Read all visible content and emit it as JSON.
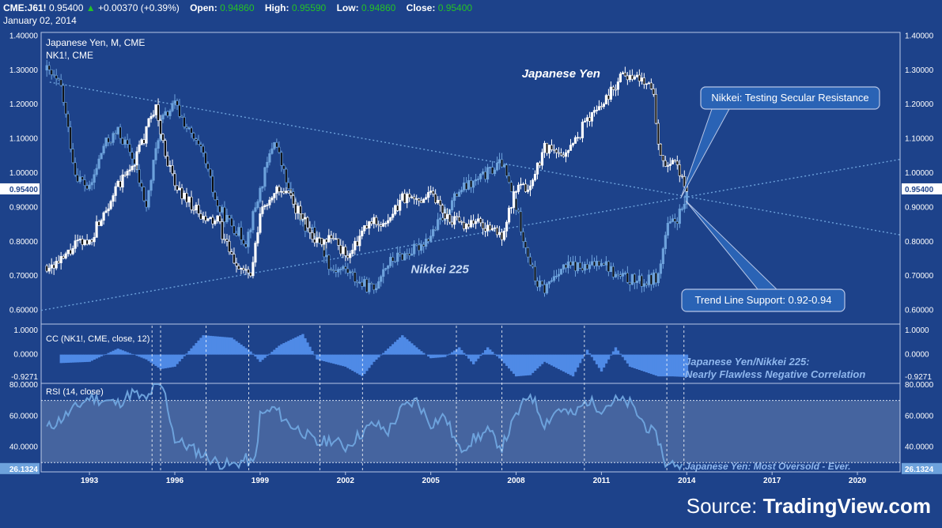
{
  "header": {
    "symbol": "CME:J61!",
    "price": "0.95400",
    "change": "+0.00370 (+0.39%)",
    "open_label": "Open:",
    "open": "0.94860",
    "high_label": "High:",
    "high": "0.95590",
    "low_label": "Low:",
    "low": "0.94860",
    "close_label": "Close:",
    "close": "0.95400",
    "date": "January 02, 2014"
  },
  "source_label": "Source:",
  "source_name": "TradingView.com",
  "colors": {
    "background": "#1d428a",
    "yen_candles": "#ffffff",
    "nikkei_candles": "#6da2dc",
    "histogram": "#4f8ae6",
    "rsi_line": "#6da2dc",
    "trendline": "#6da2dc",
    "callout": "#2a63b5",
    "price_up": "#25c225"
  },
  "chart_data": [
    {
      "type": "candlestick",
      "title": "Japanese Yen, M, CME",
      "subtitle": "NK1!, CME",
      "ylim": [
        0.56,
        1.41
      ],
      "yticks": [
        "0.60000",
        "0.70000",
        "0.80000",
        "0.90000",
        "1.00000",
        "1.10000",
        "1.20000",
        "1.30000",
        "1.40000"
      ],
      "last_value_label": "0.95400",
      "annotations": [
        {
          "text": "Japanese Yen",
          "x": 2012.0,
          "y": 1.29
        },
        {
          "text": "Nikkei 225",
          "x": 2005.8,
          "y": 0.72
        },
        {
          "text": "Nikkei: Testing Secular Resistance",
          "box": true
        },
        {
          "text": "Trend Line Support: 0.92-0.94",
          "box": true
        }
      ],
      "series": [
        {
          "name": "Japanese Yen",
          "x": [
            1991.5,
            1992,
            1992.5,
            1993,
            1993.5,
            1994,
            1994.5,
            1995,
            1995.3,
            1995.6,
            1996,
            1996.5,
            1997,
            1997.5,
            1998,
            1998.5,
            1998.7,
            1999,
            1999.5,
            2000,
            2000.5,
            2001,
            2001.5,
            2002,
            2002.3,
            2002.7,
            2003,
            2003.5,
            2004,
            2004.5,
            2005,
            2005.5,
            2006,
            2006.5,
            2007,
            2007.5,
            2008,
            2008.5,
            2009,
            2009.5,
            2010,
            2010.5,
            2011,
            2011.5,
            2011.8,
            2012,
            2012.5,
            2012.8,
            2013,
            2013.3,
            2013.6,
            2013.9,
            2014
          ],
          "values": [
            0.73,
            0.74,
            0.79,
            0.8,
            0.89,
            0.96,
            1.02,
            1.12,
            1.2,
            1.08,
            0.96,
            0.92,
            0.86,
            0.86,
            0.75,
            0.71,
            0.7,
            0.88,
            0.95,
            0.93,
            0.87,
            0.8,
            0.82,
            0.76,
            0.78,
            0.84,
            0.86,
            0.85,
            0.93,
            0.92,
            0.95,
            0.88,
            0.85,
            0.86,
            0.84,
            0.82,
            0.95,
            0.96,
            1.08,
            1.05,
            1.08,
            1.16,
            1.2,
            1.26,
            1.3,
            1.28,
            1.27,
            1.26,
            1.08,
            1.02,
            1.02,
            0.98,
            0.954
          ]
        },
        {
          "name": "Nikkei 225",
          "x": [
            1991.5,
            1992,
            1992.5,
            1993,
            1993.5,
            1994,
            1994.5,
            1995,
            1995.5,
            1996,
            1996.5,
            1997,
            1997.5,
            1998,
            1998.5,
            1999,
            1999.5,
            2000,
            2000.5,
            2001,
            2001.5,
            2002,
            2002.5,
            2003,
            2003.3,
            2003.7,
            2004,
            2004.5,
            2005,
            2005.5,
            2006,
            2006.5,
            2007,
            2007.5,
            2008,
            2008.3,
            2008.7,
            2009,
            2009.5,
            2010,
            2010.5,
            2011,
            2011.5,
            2012,
            2012.5,
            2013,
            2013.3,
            2013.6,
            2013.9,
            2014
          ],
          "values": [
            1.3,
            1.25,
            1.0,
            0.95,
            1.08,
            1.12,
            1.05,
            0.9,
            1.15,
            1.2,
            1.12,
            1.05,
            0.9,
            0.85,
            0.8,
            0.95,
            1.1,
            0.95,
            0.85,
            0.82,
            0.72,
            0.72,
            0.68,
            0.66,
            0.72,
            0.75,
            0.76,
            0.78,
            0.82,
            0.88,
            0.95,
            0.97,
            1.0,
            1.03,
            0.9,
            0.8,
            0.68,
            0.66,
            0.72,
            0.73,
            0.72,
            0.75,
            0.7,
            0.69,
            0.68,
            0.7,
            0.84,
            0.86,
            0.9,
            0.954
          ]
        }
      ]
    },
    {
      "type": "area",
      "title": "CC (NK1!, CME, close, 12)",
      "ylim": [
        -0.9271,
        1.0
      ],
      "yticks": [
        "1.0000",
        "0.0000",
        "-0.9271"
      ],
      "annotation": "Japanese Yen/Nikkei 225:\nNearly Flawless Negative Correlation",
      "x": [
        1992,
        1993,
        1994,
        1995,
        1995.5,
        1996,
        1997,
        1998,
        1998.7,
        1999,
        1999.7,
        2000.5,
        2001,
        2002,
        2002.6,
        2003,
        2004,
        2004.6,
        2005,
        2005.5,
        2006,
        2006.5,
        2007,
        2007.5,
        2008,
        2008.5,
        2009,
        2010,
        2010.5,
        2011,
        2011.5,
        2012,
        2013,
        2013.5,
        2014
      ],
      "values": [
        -0.35,
        -0.3,
        0.25,
        -0.2,
        -0.6,
        -0.5,
        0.8,
        0.7,
        0.1,
        -0.3,
        0.4,
        0.85,
        -0.2,
        -0.5,
        -0.9,
        -0.3,
        0.8,
        0.2,
        -0.15,
        -0.1,
        0.3,
        -0.4,
        0.3,
        -0.25,
        -0.9,
        -0.85,
        -0.3,
        -0.9,
        0.2,
        -0.7,
        0.3,
        -0.5,
        -0.9,
        -0.9,
        -0.9271
      ]
    },
    {
      "type": "line",
      "title": "RSI (14, close)",
      "ylim": [
        24,
        81
      ],
      "yticks": [
        "80.0000",
        "60.0000",
        "40.0000",
        "26.1324"
      ],
      "band": [
        30,
        70
      ],
      "last_value_label": "26.1324",
      "annotation": "Japanese Yen: Most Oversold - Ever.",
      "x": [
        1991.5,
        1992,
        1992.5,
        1993,
        1993.5,
        1994,
        1994.5,
        1995,
        1995.3,
        1995.6,
        1996,
        1996.5,
        1997,
        1997.5,
        1998,
        1998.5,
        1998.8,
        1999,
        1999.5,
        2000,
        2000.5,
        2001,
        2001.5,
        2002,
        2002.5,
        2003,
        2003.5,
        2004,
        2004.5,
        2005,
        2005.5,
        2006,
        2006.5,
        2007,
        2007.5,
        2008,
        2008.5,
        2009,
        2009.5,
        2010,
        2010.5,
        2011,
        2011.5,
        2012,
        2012.5,
        2013,
        2013.3,
        2013.6,
        2013.9
      ],
      "values": [
        52,
        58,
        65,
        72,
        70,
        68,
        75,
        70,
        80,
        78,
        45,
        40,
        35,
        30,
        28,
        32,
        28,
        60,
        65,
        55,
        50,
        42,
        45,
        40,
        48,
        55,
        50,
        65,
        70,
        55,
        60,
        38,
        45,
        50,
        40,
        60,
        75,
        55,
        65,
        60,
        70,
        65,
        70,
        68,
        55,
        45,
        27,
        30,
        26.13
      ]
    }
  ],
  "x_axis": {
    "ticks": [
      "1993",
      "1996",
      "1999",
      "2002",
      "2005",
      "2008",
      "2011",
      "2014",
      "2017",
      "2020"
    ]
  }
}
